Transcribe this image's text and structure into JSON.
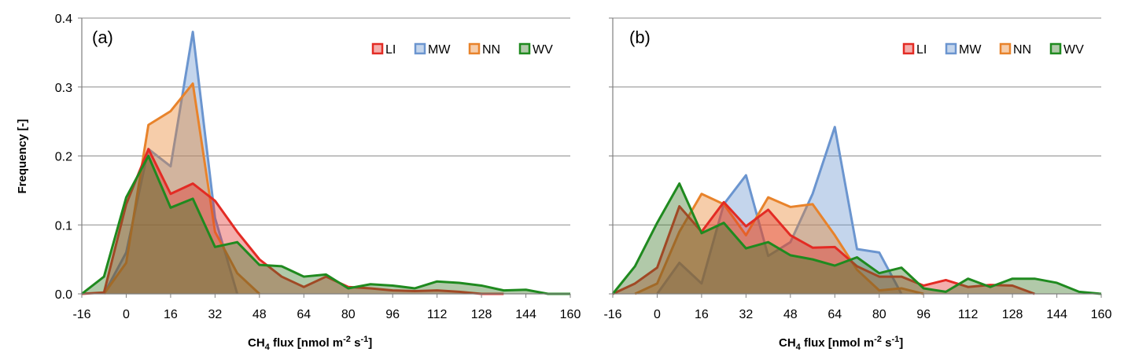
{
  "chart_data": [
    {
      "type": "area",
      "panel_label": "(a)",
      "ylabel": "Frequency [-]",
      "xlabel_main": "CH",
      "xlabel_sub": "4",
      "xlabel_rest": " flux [nmol m",
      "xlabel_sup1": "-2",
      "xlabel_mid": " s",
      "xlabel_sup2": "-1",
      "xlabel_end": "]",
      "xlim": [
        -16,
        160
      ],
      "ylim": [
        0,
        0.4
      ],
      "xticks": [
        -16,
        0,
        16,
        32,
        48,
        64,
        80,
        96,
        112,
        128,
        144,
        160
      ],
      "yticks": [
        0.0,
        0.1,
        0.2,
        0.3,
        0.4
      ],
      "ytick_labels": [
        "0.0",
        "0.1",
        "0.2",
        "0.3",
        "0.4"
      ],
      "grid": true,
      "legend_position": "top-right",
      "series": [
        {
          "name": "MW",
          "color": "#6b95cf",
          "fill": "rgba(107,149,207,0.40)",
          "x": [
            -8,
            0,
            8,
            16,
            24,
            32,
            40
          ],
          "y": [
            0.0,
            0.06,
            0.21,
            0.185,
            0.38,
            0.11,
            0.0
          ]
        },
        {
          "name": "NN",
          "color": "#e8832b",
          "fill": "rgba(232,131,43,0.40)",
          "x": [
            -8,
            0,
            8,
            16,
            24,
            32,
            40,
            48
          ],
          "y": [
            0.0,
            0.045,
            0.245,
            0.265,
            0.305,
            0.09,
            0.03,
            0.0
          ]
        },
        {
          "name": "LI",
          "color": "#e32b24",
          "fill": "rgba(227,43,36,0.38)",
          "x": [
            -16,
            -8,
            0,
            8,
            16,
            24,
            32,
            40,
            48,
            56,
            64,
            72,
            80,
            88,
            96,
            104,
            112,
            120,
            128,
            136
          ],
          "y": [
            0.0,
            0.002,
            0.13,
            0.21,
            0.145,
            0.16,
            0.135,
            0.09,
            0.05,
            0.025,
            0.01,
            0.025,
            0.01,
            0.008,
            0.005,
            0.004,
            0.005,
            0.003,
            0.0,
            0.0
          ]
        },
        {
          "name": "WV",
          "color": "#1f8a1f",
          "fill": "rgba(60,120,40,0.40)",
          "x": [
            -16,
            -8,
            0,
            8,
            16,
            24,
            32,
            40,
            48,
            56,
            64,
            72,
            80,
            88,
            96,
            104,
            112,
            120,
            128,
            136,
            144,
            152,
            160
          ],
          "y": [
            0.0,
            0.025,
            0.14,
            0.2,
            0.125,
            0.138,
            0.068,
            0.075,
            0.042,
            0.04,
            0.025,
            0.028,
            0.008,
            0.014,
            0.012,
            0.008,
            0.018,
            0.016,
            0.012,
            0.005,
            0.006,
            0.0,
            0.0
          ]
        }
      ],
      "legend": [
        "LI",
        "MW",
        "NN",
        "WV"
      ]
    },
    {
      "type": "area",
      "panel_label": "(b)",
      "ylabel": "",
      "xlabel_main": "CH",
      "xlabel_sub": "4",
      "xlabel_rest": " flux [nmol m",
      "xlabel_sup1": "-2",
      "xlabel_mid": " s",
      "xlabel_sup2": "-1",
      "xlabel_end": "]",
      "xlim": [
        -16,
        160
      ],
      "ylim": [
        0,
        0.4
      ],
      "xticks": [
        -16,
        0,
        16,
        32,
        48,
        64,
        80,
        96,
        112,
        128,
        144,
        160
      ],
      "yticks": [
        0.0,
        0.1,
        0.2,
        0.3,
        0.4
      ],
      "grid": true,
      "legend_position": "top-right",
      "series": [
        {
          "name": "MW",
          "color": "#6b95cf",
          "fill": "rgba(107,149,207,0.40)",
          "x": [
            0,
            8,
            16,
            24,
            32,
            40,
            48,
            56,
            64,
            72,
            80,
            88
          ],
          "y": [
            0.0,
            0.045,
            0.015,
            0.13,
            0.172,
            0.055,
            0.075,
            0.145,
            0.242,
            0.065,
            0.06,
            0.0
          ]
        },
        {
          "name": "NN",
          "color": "#e8832b",
          "fill": "rgba(232,131,43,0.40)",
          "x": [
            -8,
            0,
            8,
            16,
            24,
            32,
            40,
            48,
            56,
            64,
            72,
            80,
            88,
            96
          ],
          "y": [
            0.0,
            0.015,
            0.09,
            0.145,
            0.13,
            0.085,
            0.14,
            0.126,
            0.13,
            0.085,
            0.035,
            0.005,
            0.008,
            0.0
          ]
        },
        {
          "name": "LI",
          "color": "#e32b24",
          "fill": "rgba(227,43,36,0.38)",
          "x": [
            -16,
            -8,
            0,
            8,
            16,
            24,
            32,
            40,
            48,
            56,
            64,
            72,
            80,
            88,
            96,
            104,
            112,
            120,
            128,
            136
          ],
          "y": [
            0.0,
            0.015,
            0.038,
            0.127,
            0.09,
            0.133,
            0.098,
            0.122,
            0.085,
            0.067,
            0.068,
            0.04,
            0.025,
            0.025,
            0.012,
            0.02,
            0.01,
            0.013,
            0.012,
            0.0
          ]
        },
        {
          "name": "WV",
          "color": "#1f8a1f",
          "fill": "rgba(60,120,40,0.40)",
          "x": [
            -16,
            -8,
            0,
            8,
            16,
            24,
            32,
            40,
            48,
            56,
            64,
            72,
            80,
            88,
            96,
            104,
            112,
            120,
            128,
            136,
            144,
            152,
            160
          ],
          "y": [
            0.0,
            0.04,
            0.103,
            0.16,
            0.088,
            0.103,
            0.066,
            0.075,
            0.056,
            0.05,
            0.041,
            0.053,
            0.03,
            0.038,
            0.008,
            0.003,
            0.022,
            0.01,
            0.022,
            0.022,
            0.016,
            0.003,
            0.0
          ]
        }
      ],
      "legend": [
        "LI",
        "MW",
        "NN",
        "WV"
      ]
    }
  ],
  "colors": {
    "LI": "#e32b24",
    "MW": "#6b95cf",
    "NN": "#e8832b",
    "WV": "#1f8a1f"
  }
}
